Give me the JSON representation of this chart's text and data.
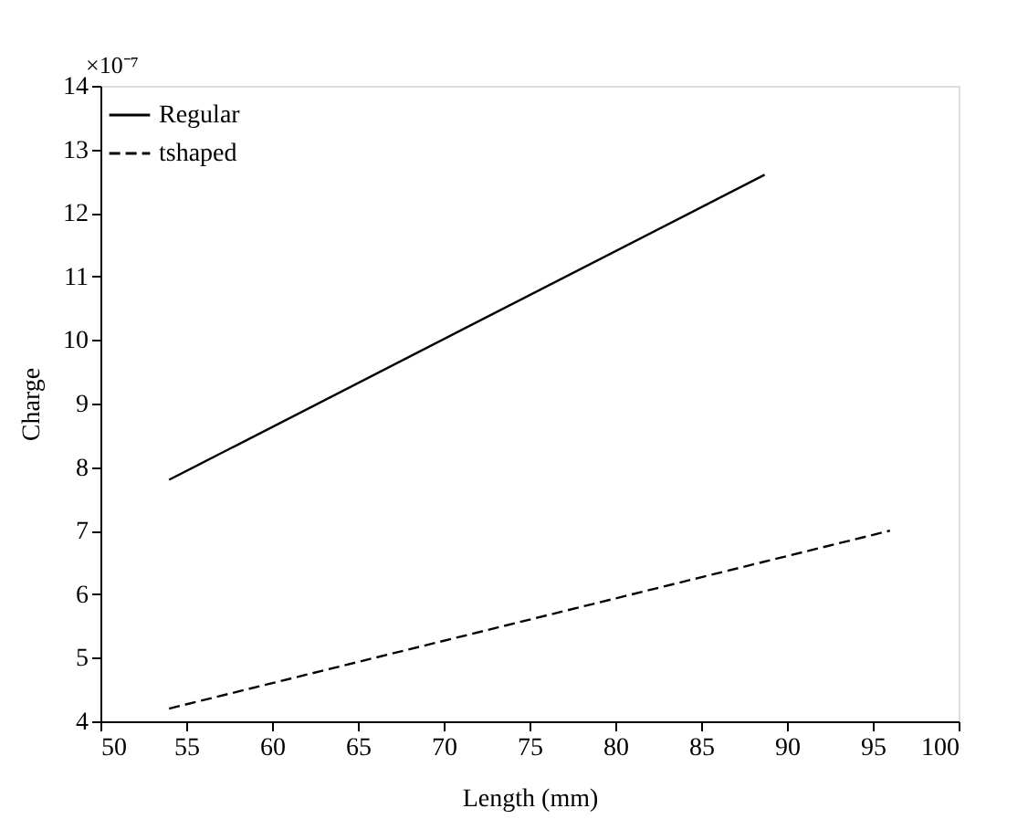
{
  "chart_data": {
    "type": "line",
    "xlabel": "Length (mm)",
    "ylabel": "Charge",
    "annotations": [
      "×10⁻⁷"
    ],
    "series": [
      {
        "name": "Regular",
        "color": "#000000",
        "line_style": "solid",
        "x": [
          54,
          88.7
        ],
        "values": [
          7.8,
          12.6
        ]
      },
      {
        "name": "tshaped",
        "color": "#000000",
        "line_style": "dashed",
        "x": [
          54,
          96
        ],
        "values": [
          4.2,
          7.0
        ]
      }
    ],
    "xlim": [
      50,
      100
    ],
    "xticks": [
      50,
      55,
      60,
      65,
      70,
      75,
      80,
      85,
      90,
      95,
      100
    ],
    "ylim": [
      4,
      14
    ],
    "yticks": [
      4,
      5,
      6,
      7,
      8,
      9,
      10,
      11,
      12,
      13,
      14
    ],
    "grid": false,
    "legend": "top left",
    "marker": "none"
  }
}
